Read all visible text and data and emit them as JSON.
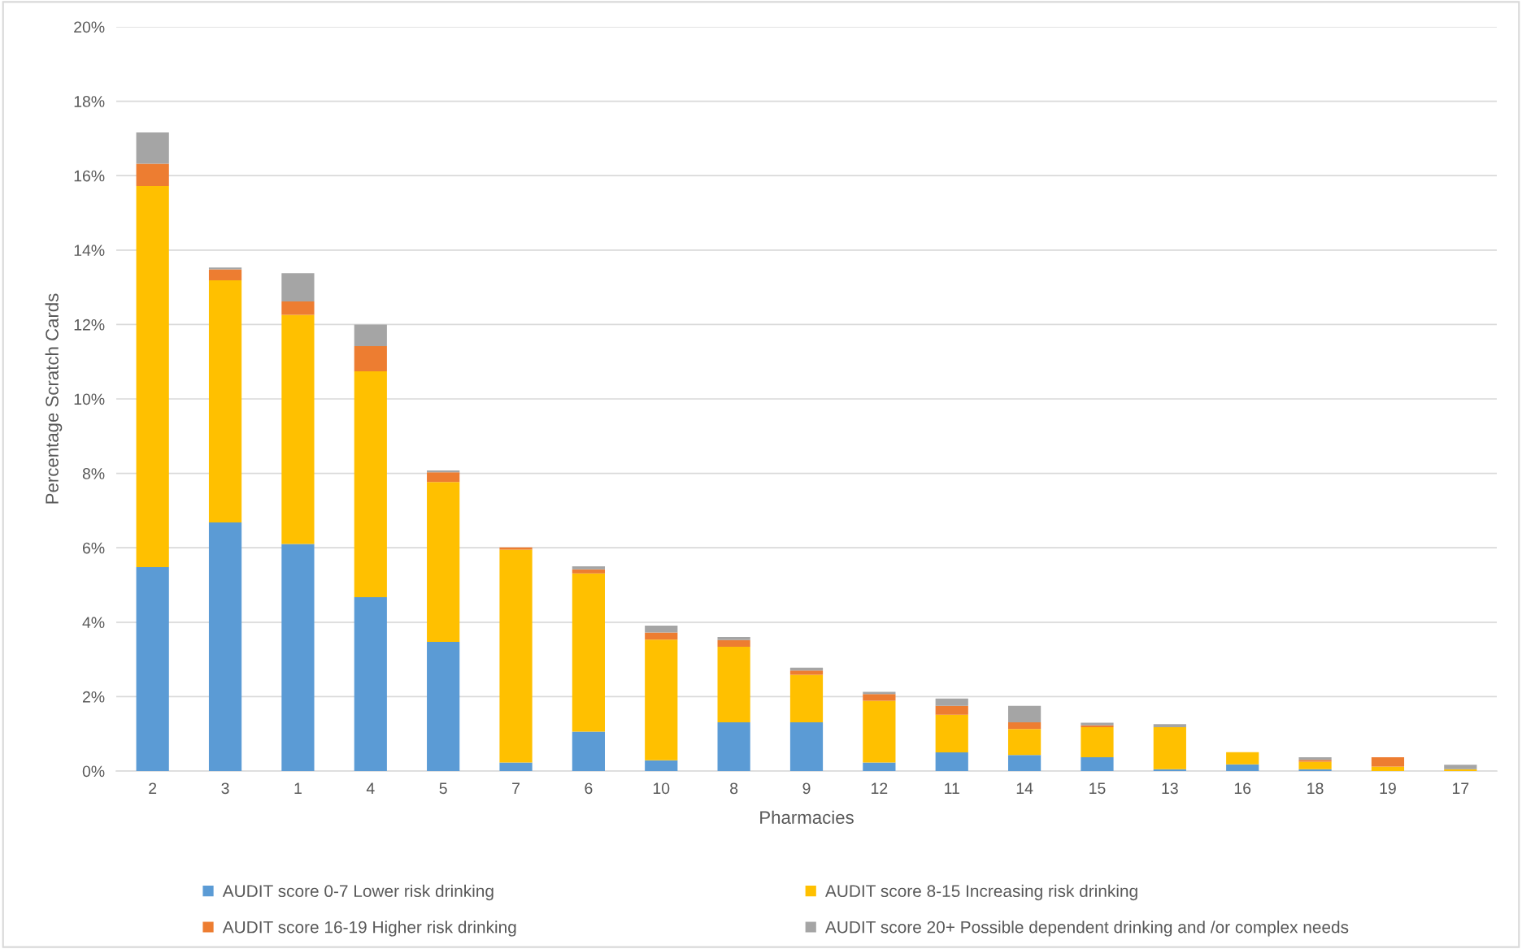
{
  "chart_data": {
    "type": "bar",
    "stacked": true,
    "xlabel": "Pharmacies",
    "ylabel": "Percentage Scratch Cards",
    "categories": [
      "2",
      "3",
      "1",
      "4",
      "5",
      "7",
      "6",
      "10",
      "8",
      "9",
      "12",
      "11",
      "14",
      "15",
      "13",
      "16",
      "18",
      "19",
      "17"
    ],
    "series": [
      {
        "name": "AUDIT score 0-7 Lower risk drinking",
        "color": "#5b9bd5",
        "values": [
          5.48,
          6.68,
          6.1,
          4.67,
          3.47,
          0.23,
          1.06,
          0.29,
          1.31,
          1.31,
          0.23,
          0.5,
          0.43,
          0.37,
          0.05,
          0.18,
          0.05,
          0,
          0
        ]
      },
      {
        "name": "AUDIT score 8-15 Increasing risk drinking",
        "color": "#ffc000",
        "values": [
          10.24,
          6.51,
          6.16,
          6.07,
          4.3,
          5.72,
          4.25,
          3.24,
          2.03,
          1.28,
          1.66,
          1.01,
          0.7,
          0.81,
          1.13,
          0.33,
          0.2,
          0.12,
          0.05
        ]
      },
      {
        "name": "AUDIT score 16-19 Higher risk drinking",
        "color": "#ed7d31",
        "values": [
          0.6,
          0.29,
          0.36,
          0.68,
          0.26,
          0.06,
          0.11,
          0.19,
          0.18,
          0.11,
          0.18,
          0.24,
          0.18,
          0.05,
          0,
          0,
          0.05,
          0.25,
          0
        ]
      },
      {
        "name": "AUDIT score 20+ Possible dependent drinking and /or complex needs",
        "color": "#a5a5a5",
        "values": [
          0.84,
          0.05,
          0.76,
          0.58,
          0.05,
          0,
          0.08,
          0.19,
          0.08,
          0.08,
          0.06,
          0.2,
          0.44,
          0.07,
          0.08,
          0,
          0.07,
          0,
          0.12
        ]
      }
    ],
    "ylim": [
      0,
      20
    ],
    "yticks": [
      {
        "value": 0,
        "label": "0%"
      },
      {
        "value": 2,
        "label": "2%"
      },
      {
        "value": 4,
        "label": "4%"
      },
      {
        "value": 6,
        "label": "6%"
      },
      {
        "value": 8,
        "label": "8%"
      },
      {
        "value": 10,
        "label": "10%"
      },
      {
        "value": 12,
        "label": "12%"
      },
      {
        "value": 14,
        "label": "14%"
      },
      {
        "value": 16,
        "label": "16%"
      },
      {
        "value": 18,
        "label": "18%"
      },
      {
        "value": 20,
        "label": "20%"
      }
    ],
    "grid": "y",
    "legend": "bottom"
  }
}
